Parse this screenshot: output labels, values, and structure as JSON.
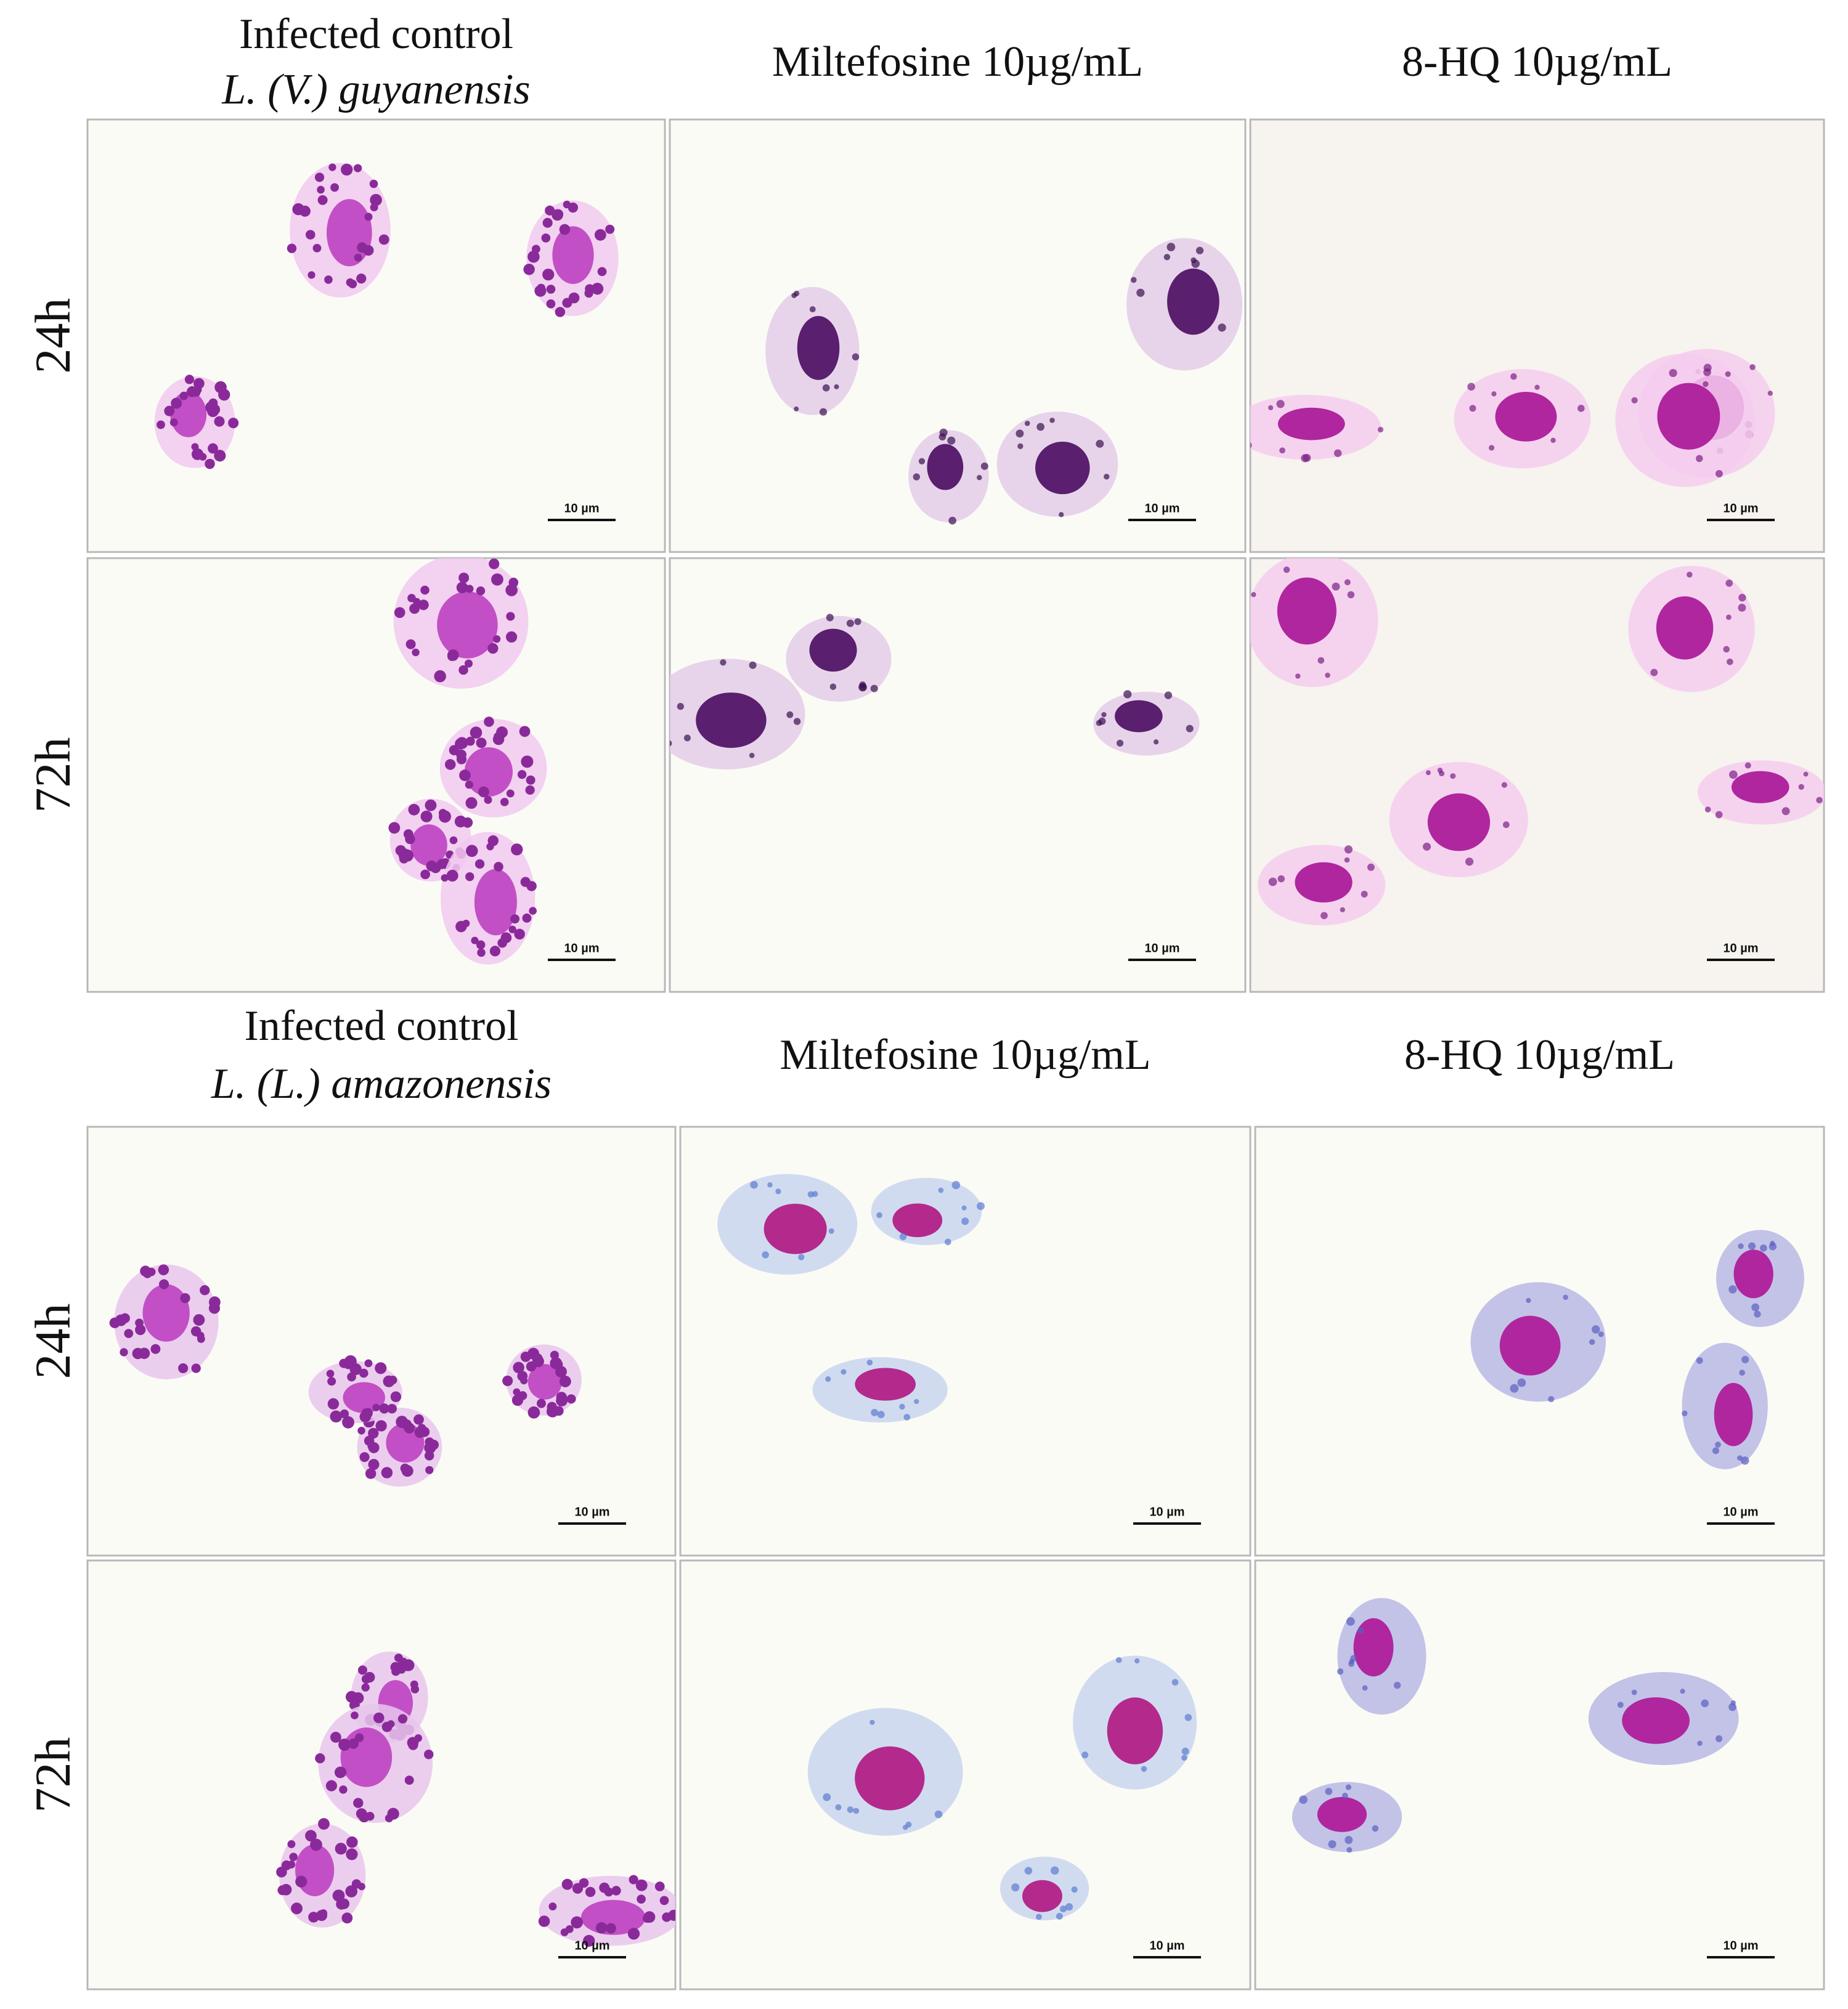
{
  "blocks": [
    {
      "header": [
        [
          "Infected control",
          "L. (V.) guyanensis"
        ],
        [
          "Miltefosine 10µg/mL"
        ],
        [
          "8-HQ 10µg/mL"
        ]
      ],
      "rows": [
        "24h",
        "72h"
      ],
      "panels": [
        [
          "10 µm",
          "10 µm",
          "10 µm"
        ],
        [
          "10 µm",
          "10 µm",
          "10 µm"
        ]
      ]
    },
    {
      "header": [
        [
          "Infected control",
          "L. (L.) amazonensis"
        ],
        [
          "Miltefosine 10µg/mL"
        ],
        [
          "8-HQ 10µg/mL"
        ]
      ],
      "rows": [
        "24h",
        "72h"
      ],
      "panels": [
        [
          "10 µm",
          "10 µm",
          "10 µm"
        ],
        [
          "10 µm",
          "10 µm",
          "10 µm"
        ]
      ]
    }
  ]
}
